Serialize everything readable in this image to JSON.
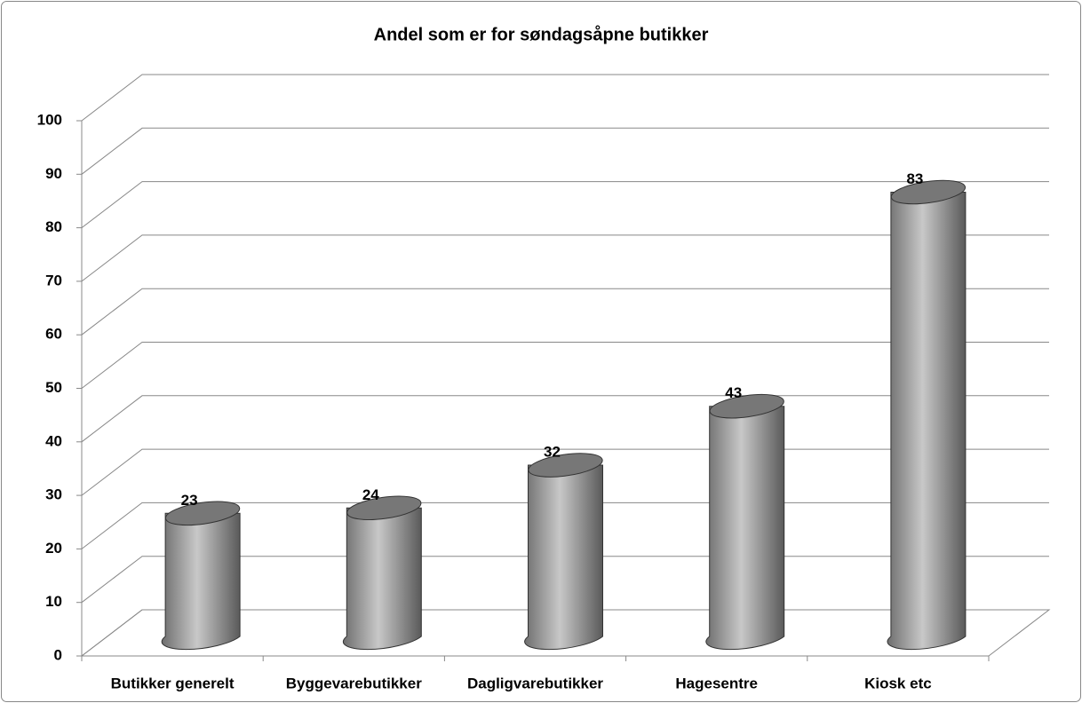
{
  "chart_data": {
    "type": "bar3d-cylinder",
    "title": "Andel som er for søndagsåpne butikker",
    "categories": [
      "Butikker generelt",
      "Byggevarebutikker",
      "Dagligvarebutikker",
      "Hagesentre",
      "Kiosk etc"
    ],
    "values": [
      23,
      24,
      32,
      43,
      83
    ],
    "color": "#a6a6a6",
    "ylim": [
      0,
      100
    ],
    "yticks": [
      0,
      10,
      20,
      30,
      40,
      50,
      60,
      70,
      80,
      90,
      100
    ],
    "grid": true
  }
}
